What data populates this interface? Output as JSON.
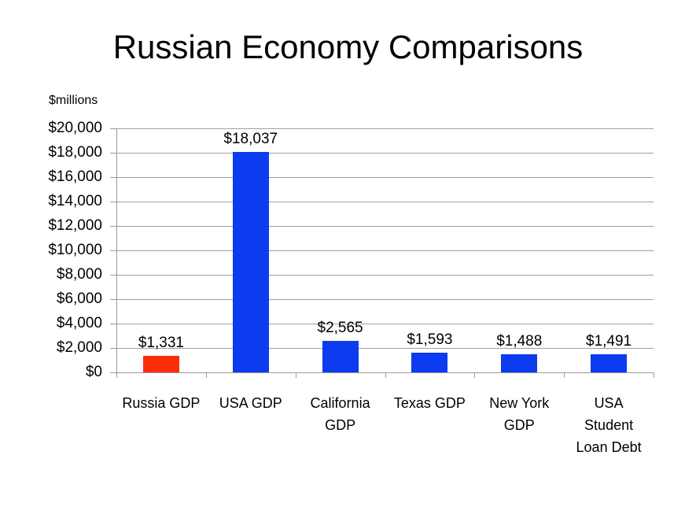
{
  "title": "Russian Economy Comparisons",
  "chart_data": {
    "type": "bar",
    "title": "Russian Economy Comparisons",
    "unit_label": "$millions",
    "categories": [
      "Russia GDP",
      "USA GDP",
      "California GDP",
      "Texas GDP",
      "New York GDP",
      "USA Student Loan Debt"
    ],
    "xtick_display": [
      "Russia GDP",
      "USA GDP",
      "California\nGDP",
      "Texas GDP",
      "New York\nGDP",
      "USA\nStudent\nLoan Debt"
    ],
    "values": [
      1331,
      18037,
      2565,
      1593,
      1488,
      1491
    ],
    "value_labels": [
      "$1,331",
      "$18,037",
      "$2,565",
      "$1,593",
      "$1,488",
      "$1,491"
    ],
    "bar_colors": [
      "#f92d09",
      "#0d3bf0",
      "#0d3bf0",
      "#0d3bf0",
      "#0d3bf0",
      "#0d3bf0"
    ],
    "xlabel": "",
    "ylabel": "$millions",
    "ylim": [
      0,
      20000
    ],
    "ytick_step": 2000,
    "ytick_labels": [
      "$0",
      "$2,000",
      "$4,000",
      "$6,000",
      "$8,000",
      "$10,000",
      "$12,000",
      "$14,000",
      "$16,000",
      "$18,000",
      "$20,000"
    ],
    "grid": true,
    "gridline_color": "#a0a0a0",
    "axis_color": "#9a9a9a",
    "legend": "none",
    "plot_background": "#ffffff"
  }
}
